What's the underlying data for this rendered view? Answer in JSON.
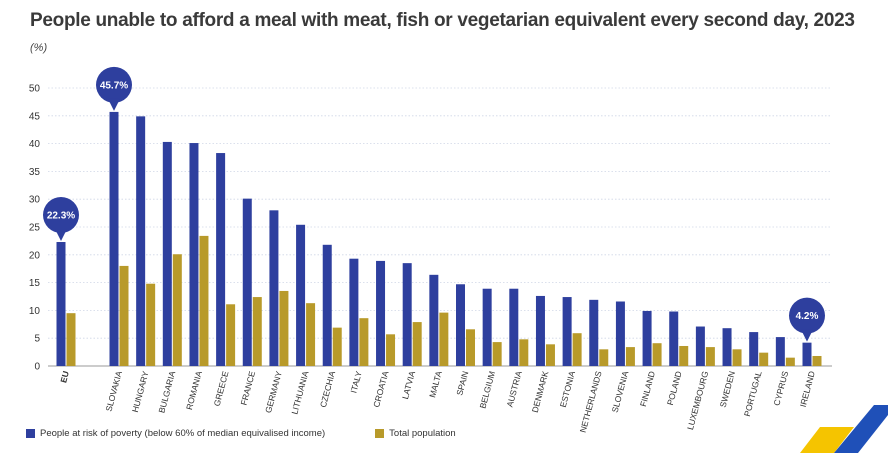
{
  "chart_data": {
    "type": "bar",
    "title": "People unable to afford a meal with meat, fish or vegetarian equivalent every second day, 2023",
    "ylabel": "(%)",
    "xlabel": "",
    "ylim": [
      0,
      50
    ],
    "yticks": [
      0,
      5,
      10,
      15,
      20,
      25,
      30,
      35,
      40,
      45,
      50
    ],
    "grid": true,
    "legend_position": "bottom-left",
    "categories": [
      "EU",
      "SLOVAKIA",
      "HUNGARY",
      "BULGARIA",
      "ROMANIA",
      "GREECE",
      "FRANCE",
      "GERMANY",
      "LITHUANIA",
      "CZECHIA",
      "ITALY",
      "CROATIA",
      "LATVIA",
      "MALTA",
      "SPAIN",
      "BELGIUM",
      "AUSTRIA",
      "DENMARK",
      "ESTONIA",
      "NETHERLANDS",
      "SLOVENIA",
      "FINLAND",
      "POLAND",
      "LUXEMBOURG",
      "SWEDEN",
      "PORTUGAL",
      "CYPRUS",
      "IRELAND"
    ],
    "series": [
      {
        "name": "People at risk of poverty (below 60% of median equivalised income)",
        "color": "#2e3f9e",
        "values": [
          22.3,
          45.7,
          44.9,
          40.3,
          40.1,
          38.3,
          30.1,
          28.0,
          25.4,
          21.8,
          19.3,
          18.9,
          18.5,
          16.4,
          14.7,
          13.9,
          13.9,
          12.6,
          12.4,
          11.9,
          11.6,
          9.9,
          9.8,
          7.1,
          6.8,
          6.1,
          5.2,
          4.2
        ]
      },
      {
        "name": "Total population",
        "color": "#b89a2a",
        "values": [
          9.5,
          18.0,
          14.8,
          20.1,
          23.4,
          11.1,
          12.4,
          13.5,
          11.3,
          6.9,
          8.6,
          5.7,
          7.9,
          9.6,
          6.6,
          4.3,
          4.8,
          3.9,
          5.9,
          3.0,
          3.4,
          4.1,
          3.6,
          3.4,
          3.0,
          2.4,
          1.5,
          1.8
        ]
      }
    ],
    "annotations": [
      {
        "category": "EU",
        "label": "22.3%"
      },
      {
        "category": "SLOVAKIA",
        "label": "45.7%"
      },
      {
        "category": "IRELAND",
        "label": "4.2%"
      }
    ]
  }
}
